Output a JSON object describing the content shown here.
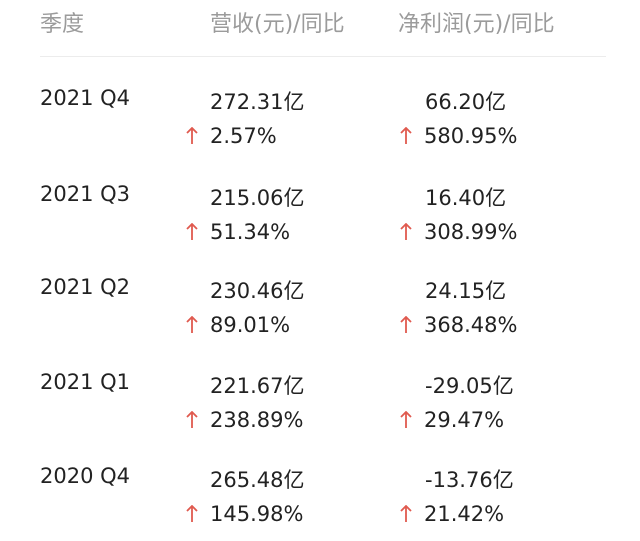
{
  "header": {
    "quarter_label": "季度",
    "revenue_label": "营收(元)/同比",
    "profit_label": "净利润(元)/同比"
  },
  "colors": {
    "up_arrow": "#e05a4f",
    "header_text": "#9b9b9b",
    "body_text": "#222222"
  },
  "rows": [
    {
      "quarter": "2021 Q4",
      "revenue": "272.31亿",
      "revenue_yoy": "2.57%",
      "profit": "66.20亿",
      "profit_yoy": "580.95%"
    },
    {
      "quarter": "2021 Q3",
      "revenue": "215.06亿",
      "revenue_yoy": "51.34%",
      "profit": "16.40亿",
      "profit_yoy": "308.99%"
    },
    {
      "quarter": "2021 Q2",
      "revenue": "230.46亿",
      "revenue_yoy": "89.01%",
      "profit": "24.15亿",
      "profit_yoy": "368.48%"
    },
    {
      "quarter": "2021 Q1",
      "revenue": "221.67亿",
      "revenue_yoy": "238.89%",
      "profit": "-29.05亿",
      "profit_yoy": "29.47%"
    },
    {
      "quarter": "2020 Q4",
      "revenue": "265.48亿",
      "revenue_yoy": "145.98%",
      "profit": "-13.76亿",
      "profit_yoy": "21.42%"
    }
  ]
}
